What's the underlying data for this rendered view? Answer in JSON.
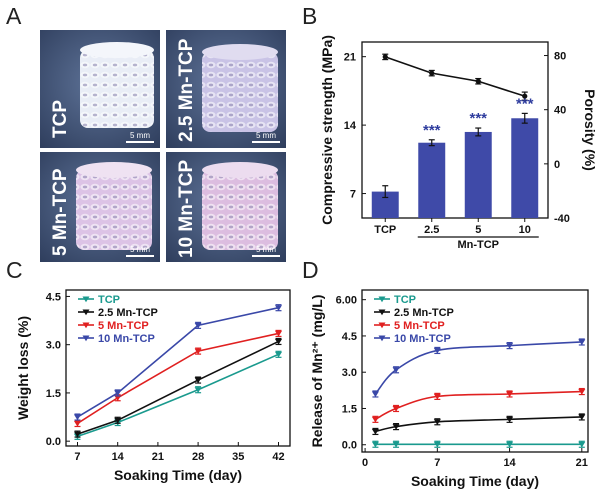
{
  "figure": {
    "panel_letters": [
      "A",
      "B",
      "C",
      "D"
    ],
    "photos": [
      {
        "label": "TCP",
        "scale": "5 mm",
        "tint": "#e9edf6"
      },
      {
        "label": "2.5 Mn-TCP",
        "scale": "5 mm",
        "tint": "#c9c3e6"
      },
      {
        "label": "5 Mn-TCP",
        "scale": "5 mm",
        "tint": "#dcc3e6"
      },
      {
        "label": "10 Mn-TCP",
        "scale": "5 mm",
        "tint": "#dcbde0"
      }
    ]
  },
  "chart_data": [
    {
      "panel": "B",
      "type": "bar",
      "categories": [
        "TCP",
        "2.5",
        "5",
        "10"
      ],
      "group_label": "Mn-TCP",
      "ylabel": "Compressive strength (MPa)",
      "ylabel_right": "Porosity (%)",
      "ylim": [
        4.5,
        22.5
      ],
      "yticks": [
        7,
        14,
        21
      ],
      "ylim_right": [
        -40,
        90
      ],
      "yticks_right": [
        -40,
        0,
        40,
        80
      ],
      "series": [
        {
          "type": "bar",
          "axis": "left",
          "values": [
            7.2,
            12.2,
            13.3,
            14.7
          ],
          "errors": [
            0.6,
            0.3,
            0.4,
            0.5
          ],
          "color": "#3f4aa8"
        },
        {
          "type": "line",
          "axis": "right",
          "values": [
            79,
            67,
            61,
            50
          ],
          "errors": [
            2,
            2,
            2,
            3
          ],
          "color": "#111111"
        }
      ],
      "annotations": [
        "***",
        "***",
        "***"
      ]
    },
    {
      "panel": "C",
      "type": "line",
      "xlabel": "Soaking Time (day)",
      "ylabel": "Weight loss (%)",
      "xticks": [
        7,
        14,
        21,
        28,
        35,
        42
      ],
      "xlim": [
        5,
        44
      ],
      "yticks": [
        "0.0",
        "1.5",
        "3.0",
        "4.5"
      ],
      "ylim": [
        -0.15,
        4.7
      ],
      "x": [
        7,
        14,
        28,
        42
      ],
      "series": [
        {
          "name": "TCP",
          "values": [
            0.15,
            0.58,
            1.6,
            2.7
          ],
          "color": "#1a9a8e"
        },
        {
          "name": "2.5 Mn-TCP",
          "values": [
            0.22,
            0.65,
            1.9,
            3.1
          ],
          "color": "#111111"
        },
        {
          "name": "5 Mn-TCP",
          "values": [
            0.55,
            1.35,
            2.8,
            3.35
          ],
          "color": "#e02020"
        },
        {
          "name": "10 Mn-TCP",
          "values": [
            0.75,
            1.5,
            3.6,
            4.15
          ],
          "color": "#3a48a8"
        }
      ]
    },
    {
      "panel": "D",
      "type": "line",
      "xlabel": "Soaking Time (day)",
      "ylabel": "Release of Mn²⁺ (mg/L)",
      "xticks": [
        0,
        7,
        14,
        21
      ],
      "xlim": [
        -0.3,
        21.6
      ],
      "yticks": [
        "0.0",
        "1.5",
        "3.0",
        "4.5",
        "6.00"
      ],
      "ylim": [
        -0.3,
        6.4
      ],
      "x": [
        1,
        3,
        7,
        14,
        21
      ],
      "series": [
        {
          "name": "TCP",
          "values": [
            0.02,
            0.02,
            0.02,
            0.02,
            0.02
          ],
          "color": "#1a9a8e"
        },
        {
          "name": "2.5 Mn-TCP",
          "values": [
            0.55,
            0.75,
            0.95,
            1.05,
            1.15
          ],
          "color": "#111111"
        },
        {
          "name": "5 Mn-TCP",
          "values": [
            1.05,
            1.5,
            2.0,
            2.1,
            2.2
          ],
          "color": "#e02020"
        },
        {
          "name": "10 Mn-TCP",
          "values": [
            2.1,
            3.1,
            3.9,
            4.1,
            4.25
          ],
          "color": "#3a48a8"
        }
      ]
    }
  ]
}
